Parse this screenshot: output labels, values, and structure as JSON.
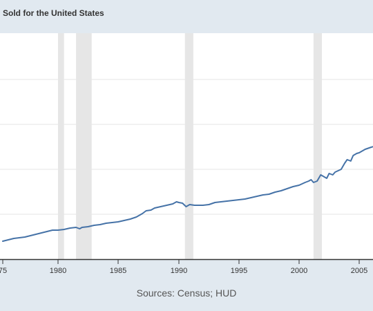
{
  "header": {
    "title": "Sold for the United States"
  },
  "footer": {
    "source": "Sources: Census; HUD"
  },
  "colors": {
    "line": "#4572a7",
    "recession": "#e6e6e6",
    "grid": "#e6e6e6",
    "axis": "#333333"
  },
  "chart_data": {
    "type": "line",
    "title": "Sold for the United States",
    "xlabel": "",
    "ylabel": "",
    "xlim": [
      1975,
      2006.2
    ],
    "x_ticks": [
      "1975",
      "1980",
      "1985",
      "1990",
      "1995",
      "2000",
      "2005"
    ],
    "tick_labels": [
      "75",
      "1980",
      "1985",
      "1990",
      "1995",
      "2000",
      "2005"
    ],
    "grid": true,
    "recessions": [
      [
        1980.0,
        1980.5
      ],
      [
        1981.5,
        1982.8
      ],
      [
        1990.5,
        1991.2
      ],
      [
        2001.2,
        2001.9
      ]
    ],
    "series": [
      {
        "name": "",
        "points": [
          [
            1975.0,
            349
          ],
          [
            1975.5,
            347
          ],
          [
            1976.0,
            345
          ],
          [
            1976.5,
            344
          ],
          [
            1977.0,
            343
          ],
          [
            1977.5,
            341
          ],
          [
            1978.0,
            339
          ],
          [
            1978.5,
            337
          ],
          [
            1979.0,
            335
          ],
          [
            1979.5,
            333
          ],
          [
            1980.0,
            333
          ],
          [
            1980.5,
            332
          ],
          [
            1981.0,
            330
          ],
          [
            1981.5,
            329
          ],
          [
            1981.8,
            331
          ],
          [
            1982.0,
            329
          ],
          [
            1982.5,
            328
          ],
          [
            1983.0,
            326
          ],
          [
            1983.5,
            325
          ],
          [
            1984.0,
            323
          ],
          [
            1984.5,
            322
          ],
          [
            1985.0,
            321
          ],
          [
            1985.5,
            319
          ],
          [
            1986.0,
            317
          ],
          [
            1986.5,
            314
          ],
          [
            1987.0,
            309
          ],
          [
            1987.3,
            305
          ],
          [
            1987.7,
            304
          ],
          [
            1988.0,
            301
          ],
          [
            1988.5,
            299
          ],
          [
            1989.0,
            297
          ],
          [
            1989.5,
            295
          ],
          [
            1989.8,
            292
          ],
          [
            1990.0,
            293
          ],
          [
            1990.3,
            294
          ],
          [
            1990.6,
            299
          ],
          [
            1990.9,
            296
          ],
          [
            1991.3,
            297
          ],
          [
            1992.0,
            297
          ],
          [
            1992.5,
            296
          ],
          [
            1993.0,
            293
          ],
          [
            1993.5,
            292
          ],
          [
            1994.0,
            291
          ],
          [
            1994.5,
            290
          ],
          [
            1995.0,
            289
          ],
          [
            1995.5,
            288
          ],
          [
            1996.0,
            286
          ],
          [
            1996.5,
            284
          ],
          [
            1997.0,
            282
          ],
          [
            1997.5,
            281
          ],
          [
            1998.0,
            278
          ],
          [
            1998.5,
            276
          ],
          [
            1999.0,
            273
          ],
          [
            1999.5,
            270
          ],
          [
            2000.0,
            268
          ],
          [
            2000.5,
            264
          ],
          [
            2000.8,
            262
          ],
          [
            2001.0,
            260
          ],
          [
            2001.2,
            264
          ],
          [
            2001.5,
            262
          ],
          [
            2001.8,
            253
          ],
          [
            2002.0,
            255
          ],
          [
            2002.3,
            258
          ],
          [
            2002.5,
            251
          ],
          [
            2002.8,
            253
          ],
          [
            2003.0,
            249
          ],
          [
            2003.5,
            245
          ],
          [
            2003.8,
            236
          ],
          [
            2004.0,
            231
          ],
          [
            2004.3,
            233
          ],
          [
            2004.5,
            225
          ],
          [
            2004.8,
            222
          ],
          [
            2005.0,
            221
          ],
          [
            2005.5,
            216
          ],
          [
            2006.0,
            213
          ],
          [
            2006.2,
            212
          ]
        ]
      }
    ]
  }
}
